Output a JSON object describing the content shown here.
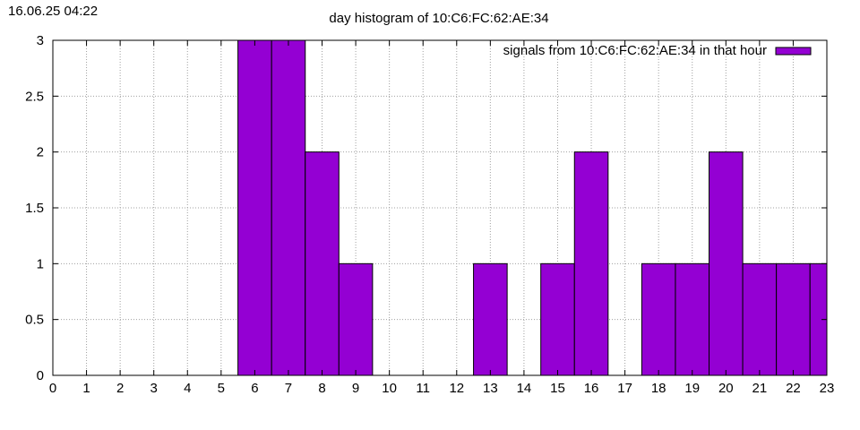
{
  "timestamp": "16.06.25 04:22",
  "chart_data": {
    "type": "bar",
    "title": "day histogram of 10:C6:FC:62:AE:34",
    "xlabel": "",
    "ylabel": "",
    "categories": [
      "0",
      "1",
      "2",
      "3",
      "4",
      "5",
      "6",
      "7",
      "8",
      "9",
      "10",
      "11",
      "12",
      "13",
      "14",
      "15",
      "16",
      "17",
      "18",
      "19",
      "20",
      "21",
      "22",
      "23"
    ],
    "series": [
      {
        "name": "signals from 10:C6:FC:62:AE:34 in that hour",
        "color": "#9400d3",
        "values": [
          0,
          0,
          0,
          0,
          0,
          0,
          3,
          3,
          2,
          1,
          0,
          0,
          0,
          1,
          0,
          1,
          2,
          0,
          1,
          1,
          2,
          1,
          1,
          1
        ]
      }
    ],
    "xlim": [
      0,
      23
    ],
    "ylim": [
      0,
      3
    ],
    "yticks": [
      "0",
      "0.5",
      "1",
      "1.5",
      "2",
      "2.5",
      "3"
    ],
    "grid": true,
    "legend_position": "top-right"
  }
}
